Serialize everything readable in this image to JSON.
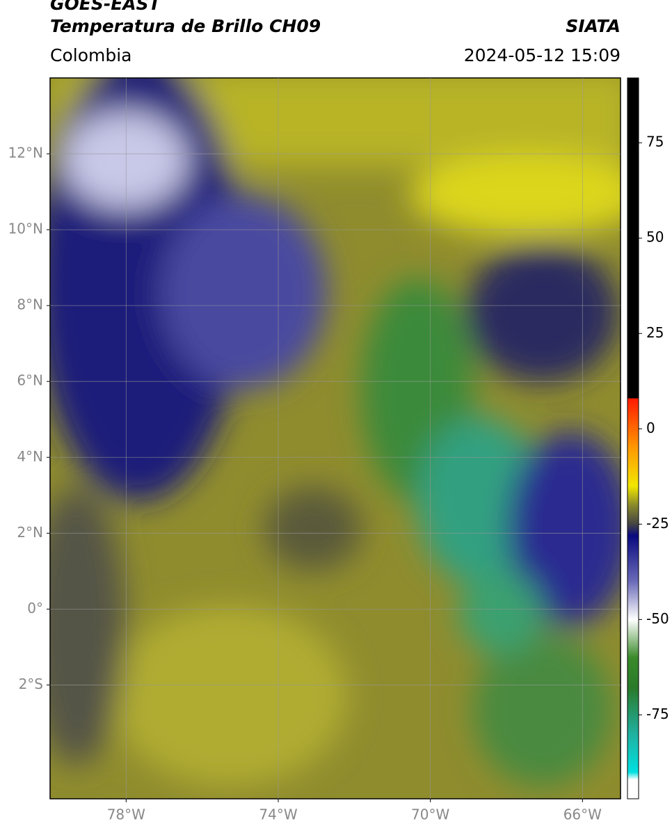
{
  "header": {
    "title": "GOES-EAST",
    "subtitle": "Temperatura de Brillo CH09",
    "source": "SIATA",
    "region": "Colombia",
    "datetime": "2024-05-12 15:09"
  },
  "map": {
    "xlim": [
      -80,
      -65
    ],
    "ylim": [
      -5,
      14
    ],
    "xticks": [
      {
        "value": -78,
        "label": "78°W"
      },
      {
        "value": -74,
        "label": "74°W"
      },
      {
        "value": -70,
        "label": "70°W"
      },
      {
        "value": -66,
        "label": "66°W"
      }
    ],
    "yticks": [
      {
        "value": 12,
        "label": "12°N"
      },
      {
        "value": 10,
        "label": "10°N"
      },
      {
        "value": 8,
        "label": "8°N"
      },
      {
        "value": 6,
        "label": "6°N"
      },
      {
        "value": 4,
        "label": "4°N"
      },
      {
        "value": 2,
        "label": "2°N"
      },
      {
        "value": 0,
        "label": "0°"
      },
      {
        "value": -2,
        "label": "2°S"
      }
    ],
    "grid": true
  },
  "colorbar": {
    "lim": [
      -97,
      92
    ],
    "ticks": [
      75,
      50,
      25,
      0,
      -25,
      -50,
      -75
    ],
    "colormap": [
      [
        92,
        "#000000"
      ],
      [
        8,
        "#000000"
      ],
      [
        8,
        "#ff1a00"
      ],
      [
        -5,
        "#ff9900"
      ],
      [
        -15,
        "#f2e600"
      ],
      [
        -20,
        "#8a8a2a"
      ],
      [
        -25,
        "#444444"
      ],
      [
        -28,
        "#0a0a80"
      ],
      [
        -40,
        "#6a6ab8"
      ],
      [
        -50,
        "#ffffff"
      ],
      [
        -60,
        "#3a8a2a"
      ],
      [
        -68,
        "#2a7a2a"
      ],
      [
        -80,
        "#20b0a0"
      ],
      [
        -90,
        "#00e0e0"
      ],
      [
        -92,
        "#ffffff"
      ],
      [
        -97,
        "#ffffff"
      ]
    ]
  }
}
